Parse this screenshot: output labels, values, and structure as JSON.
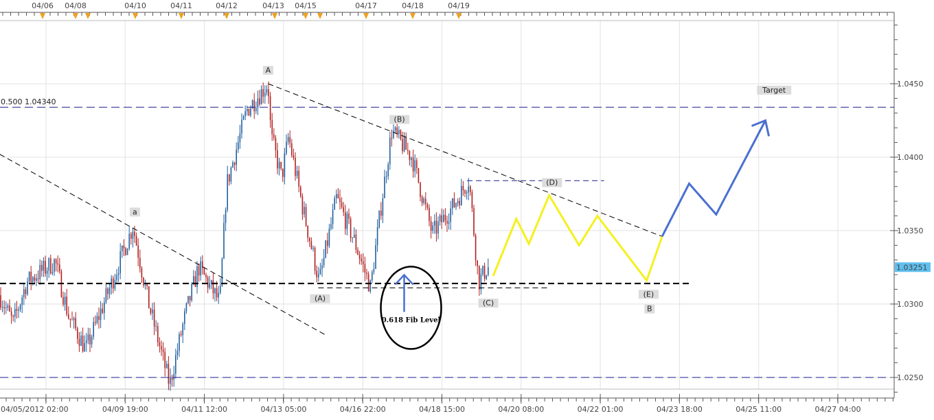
{
  "chart_data": {
    "type": "candlestick",
    "ylim": [
      1.024,
      1.0495
    ],
    "grid": true,
    "y_ticks": [
      "1.0450",
      "1.0400",
      "1.0350",
      "1.0300",
      "1.0250"
    ],
    "x_ticks": [
      {
        "label": "04/05/2012 02:00",
        "time": "04/05 02:00"
      },
      {
        "label": "04/09 19:00",
        "time": "04/09 19:00"
      },
      {
        "label": "04/11 12:00",
        "time": "04/11 12:00"
      },
      {
        "label": "04/13 05:00",
        "time": "04/13 05:00"
      },
      {
        "label": "04/16 22:00",
        "time": "04/16 22:00"
      },
      {
        "label": "04/18 15:00",
        "time": "04/18 15:00"
      },
      {
        "label": "04/20 08:00",
        "time": "04/20 08:00"
      },
      {
        "label": "04/22 01:00",
        "time": "04/22 01:00"
      },
      {
        "label": "04/23 18:00",
        "time": "04/23 18:00"
      },
      {
        "label": "04/25 11:00",
        "time": "04/25 11:00"
      },
      {
        "label": "04/27 04:00",
        "time": "04/27 04:00"
      }
    ],
    "top_dates": [
      "04/06",
      "04/08",
      "04/10",
      "04/11",
      "04/12",
      "04/13",
      "04/15",
      "04/17",
      "04/18",
      "04/19"
    ],
    "last_price": "1.03251",
    "up_color": "#1f5f9f",
    "down_color": "#b01e1e",
    "price_path": [
      [
        "04/04 02:00",
        1.0306
      ],
      [
        "04/04 09:00",
        1.0287
      ],
      [
        "04/04 16:00",
        1.0315
      ],
      [
        "04/05 15:00",
        1.0329
      ],
      [
        "04/06 10:00",
        1.0292
      ],
      [
        "04/07 11:00",
        1.0269
      ],
      [
        "04/08 21:00",
        1.0311
      ],
      [
        "04/09 23:00",
        1.0353
      ],
      [
        "04/10 07:00",
        1.0301
      ],
      [
        "04/10 18:00",
        1.0245
      ],
      [
        "04/11 02:00",
        1.0292
      ],
      [
        "04/11 09:00",
        1.0325
      ],
      [
        "04/11 20:00",
        1.0301
      ],
      [
        "04/11 23:30",
        1.0381
      ],
      [
        "04/12 10:00",
        1.0432
      ],
      [
        "04/12 21:00",
        1.045
      ],
      [
        "04/12 22:30",
        1.0414
      ],
      [
        "04/13 04:00",
        1.0386
      ],
      [
        "04/13 10:30",
        1.0414
      ],
      [
        "04/14 02:00",
        1.0367
      ],
      [
        "04/14 21:00",
        1.0315
      ],
      [
        "04/15 16:30",
        1.0372
      ],
      [
        "04/16 12:00",
        1.0344
      ],
      [
        "04/17 02:00",
        1.0311
      ],
      [
        "04/17 07:30",
        1.0367
      ],
      [
        "04/17 13:00",
        1.0418
      ],
      [
        "04/17 23:30",
        1.04
      ],
      [
        "04/18 10:00",
        1.0348
      ],
      [
        "04/18 21:00",
        1.0367
      ],
      [
        "04/19 05:00",
        1.0385
      ],
      [
        "04/19 10:00",
        1.0315
      ],
      [
        "04/19 14:30",
        1.0325
      ]
    ],
    "projection_yellow": {
      "color": "#f5f01e",
      "points": [
        [
          "04/19 17:30",
          1.0319
        ],
        [
          "04/20 05:30",
          1.0358
        ],
        [
          "04/20 12:00",
          1.0341
        ],
        [
          "04/20 22:30",
          1.0374
        ],
        [
          "04/21 14:00",
          1.034
        ],
        [
          "04/21 23:30",
          1.036
        ],
        [
          "04/23 01:00",
          1.0316
        ],
        [
          "04/23 09:00",
          1.0346
        ]
      ]
    },
    "projection_blue": {
      "color": "#4a6fd0",
      "points": [
        [
          "04/23 09:00",
          1.0346
        ],
        [
          "04/23 23:00",
          1.0382
        ],
        [
          "04/24 13:00",
          1.0361
        ],
        [
          "04/25 14:30",
          1.0425
        ]
      ]
    },
    "horizontal_lines": [
      {
        "label": "0.500 1.04340",
        "price": 1.0434,
        "color": "#1a1a8c",
        "style": "dashed"
      },
      {
        "price": 1.025,
        "color": "#1a1a8c",
        "style": "dashed"
      },
      {
        "price": 1.0314,
        "color": "#000000",
        "style": "thick-dashed"
      }
    ],
    "segments": [
      {
        "from": [
          "04/04 02:00",
          1.0402
        ],
        "to": [
          "04/15 04:00",
          1.0279
        ],
        "color": "#000000"
      },
      {
        "from": [
          "04/12 21:00",
          1.045
        ],
        "to": [
          "04/23 09:00",
          1.0346
        ],
        "color": "#000000"
      },
      {
        "from": [
          "04/14 20:00",
          1.0311
        ],
        "to": [
          "04/20 23:00",
          1.0311
        ],
        "color": "#000000"
      },
      {
        "from": [
          "04/19 04:00",
          1.0384
        ],
        "to": [
          "04/21 27:00",
          1.0384
        ],
        "color": "#1a1a8c"
      }
    ],
    "wave_labels": [
      {
        "text": "A",
        "time": "04/12 21:00",
        "price": 1.04575,
        "color": "#1a1a8c"
      },
      {
        "text": "a",
        "time": "04/10 00:00",
        "price": 1.0361,
        "color": "#222222"
      },
      {
        "text": "(B)",
        "time": "04/17 17:00",
        "price": 1.0424,
        "color": "#222222"
      },
      {
        "text": "(D)",
        "time": "04/21 00:00",
        "price": 1.0381,
        "color": "#222222"
      },
      {
        "text": "(A)",
        "time": "04/14 22:00",
        "price": 1.0302,
        "color": "#222222"
      },
      {
        "text": "(C)",
        "time": "04/19 15:00",
        "price": 1.0299,
        "color": "#222222"
      },
      {
        "text": "(E)",
        "time": "04/23 02:00",
        "price": 1.0305,
        "color": "#222222"
      },
      {
        "text": "B",
        "time": "04/23 02:30",
        "price": 1.0295,
        "color": "#1a1a8c"
      },
      {
        "text": "Target",
        "time": "04/25 19:00",
        "price": 1.0444,
        "color": "#222222"
      }
    ],
    "fib_note": {
      "text": "0.618 Fib Level",
      "time": "04/17 23:00",
      "price": 1.0289
    }
  }
}
